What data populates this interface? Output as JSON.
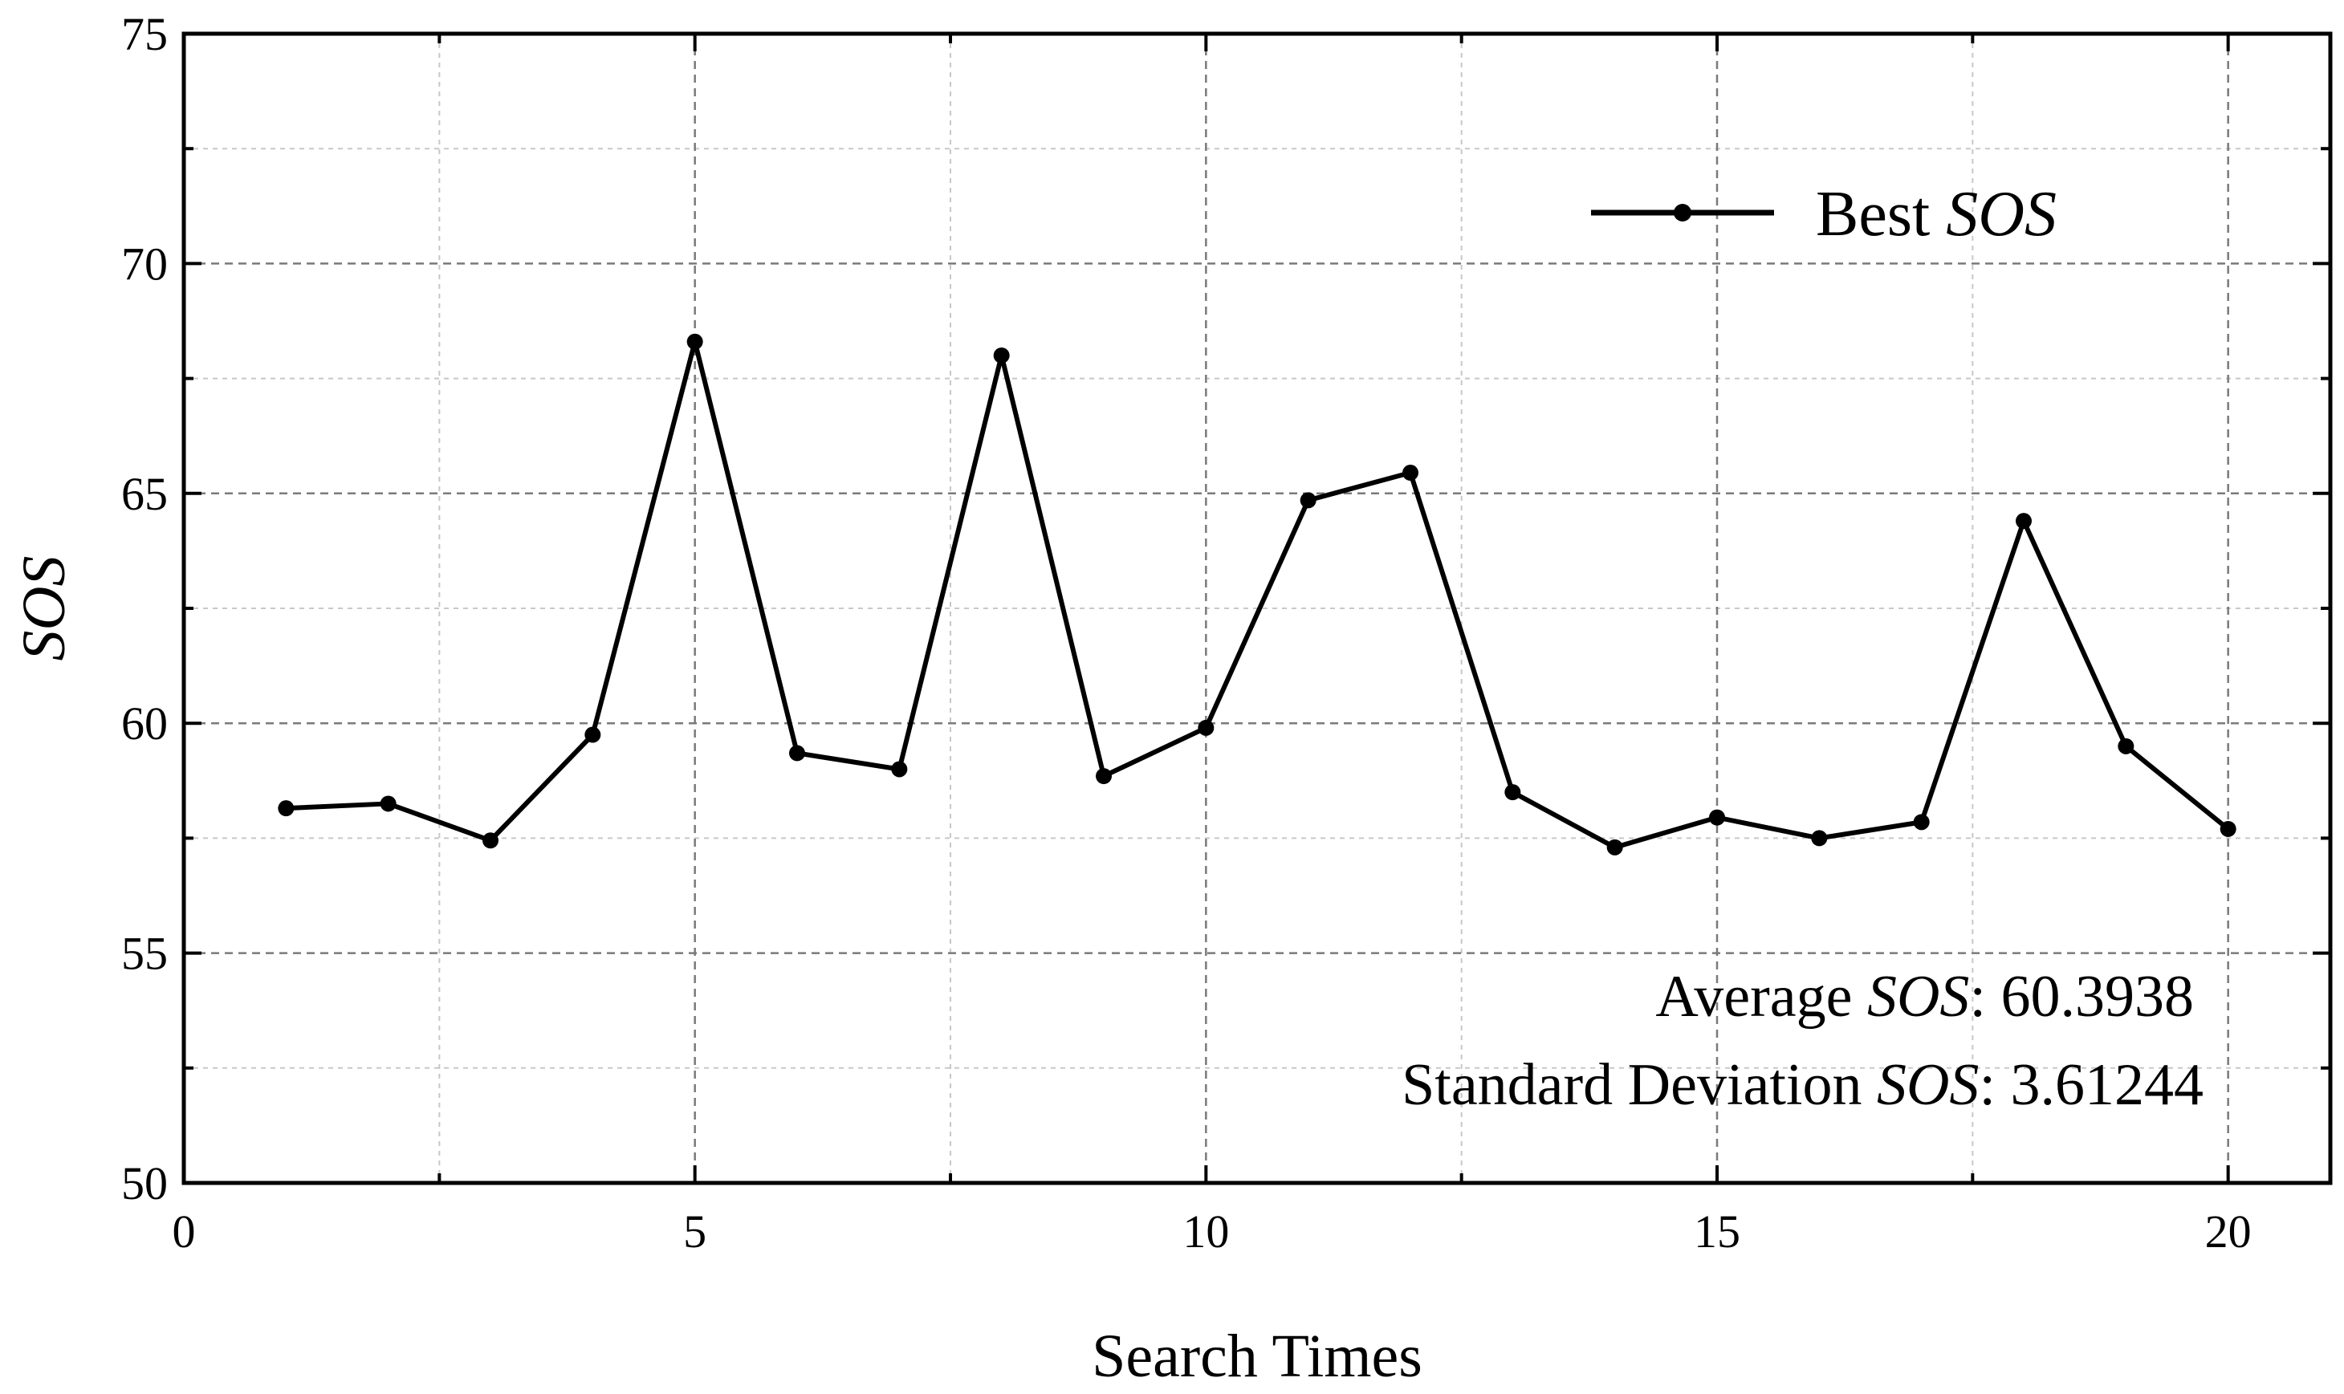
{
  "chart_data": {
    "type": "line",
    "title": "",
    "xlabel": "Search Times",
    "ylabel": "SOS",
    "xlim": [
      0,
      21
    ],
    "ylim": [
      50,
      75
    ],
    "xticks": [
      0,
      5,
      10,
      15,
      20
    ],
    "yticks": [
      50,
      55,
      60,
      65,
      70,
      75
    ],
    "grid": true,
    "legend_position": "top-right",
    "series": [
      {
        "name_parts": [
          "Best ",
          "SOS"
        ],
        "color": "#000000",
        "marker": "circle",
        "x": [
          1,
          2,
          3,
          4,
          5,
          6,
          7,
          8,
          9,
          10,
          11,
          12,
          13,
          14,
          15,
          16,
          17,
          18,
          19,
          20
        ],
        "y": [
          58.15,
          58.25,
          57.45,
          59.75,
          68.3,
          59.35,
          59.0,
          68.0,
          58.85,
          59.9,
          64.85,
          65.45,
          58.5,
          57.3,
          57.95,
          57.5,
          57.85,
          64.4,
          59.5,
          57.7
        ]
      }
    ],
    "annotations": [
      {
        "parts": [
          "Average ",
          "SOS",
          ": 60.3938"
        ]
      },
      {
        "parts": [
          "Standard Deviation ",
          "SOS",
          ": 3.61244"
        ]
      }
    ]
  }
}
